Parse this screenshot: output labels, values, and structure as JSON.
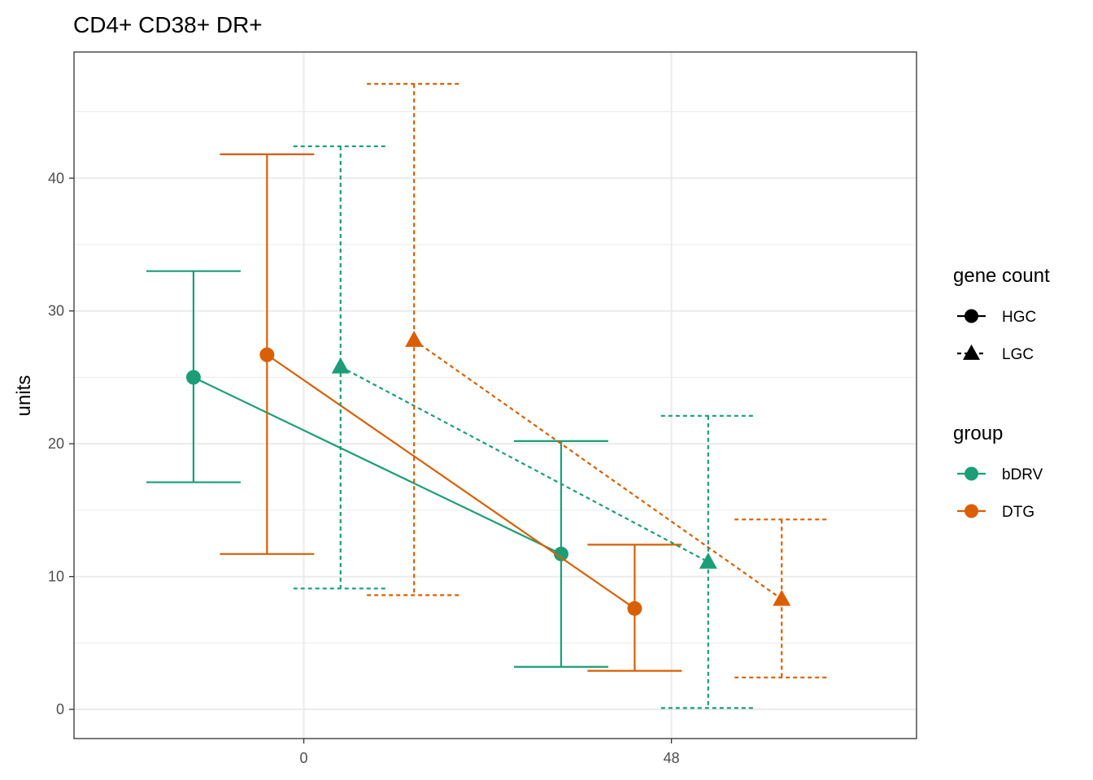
{
  "chart_data": {
    "type": "line",
    "title": "CD4+ CD38+ DR+",
    "xlabel": "",
    "ylabel": "units",
    "x_ticks": [
      "0",
      "48"
    ],
    "y_ticks": [
      "0",
      "10",
      "20",
      "30",
      "40"
    ],
    "ylim": [
      -2.2,
      49.5
    ],
    "xlim": [
      -30,
      80
    ],
    "grid": true,
    "legend_position": "right",
    "legend": {
      "linetype_title": "gene count",
      "linetype_items": [
        {
          "label": "HGC",
          "shape": "circle",
          "dash": "solid"
        },
        {
          "label": "LGC",
          "shape": "triangle",
          "dash": "dotted"
        }
      ],
      "color_title": "group",
      "color_items": [
        {
          "label": "bDRV",
          "color": "#1b9e77"
        },
        {
          "label": "DTG",
          "color": "#d95f02"
        }
      ]
    },
    "series": [
      {
        "group": "bDRV",
        "gene_count": "HGC",
        "color": "#1b9e77",
        "shape": "circle",
        "dash": "solid",
        "points": [
          {
            "x": -14.4,
            "mean": 25.0,
            "lower": 17.1,
            "upper": 33.0
          },
          {
            "x": 33.6,
            "mean": 11.7,
            "lower": 3.2,
            "upper": 20.2
          }
        ]
      },
      {
        "group": "DTG",
        "gene_count": "HGC",
        "color": "#d95f02",
        "shape": "circle",
        "dash": "solid",
        "points": [
          {
            "x": -4.8,
            "mean": 26.7,
            "lower": 11.7,
            "upper": 41.8
          },
          {
            "x": 43.2,
            "mean": 7.6,
            "lower": 2.9,
            "upper": 12.4
          }
        ]
      },
      {
        "group": "bDRV",
        "gene_count": "LGC",
        "color": "#1b9e77",
        "shape": "triangle",
        "dash": "dotted",
        "points": [
          {
            "x": 4.8,
            "mean": 25.8,
            "lower": 9.1,
            "upper": 42.4
          },
          {
            "x": 52.8,
            "mean": 11.1,
            "lower": 0.1,
            "upper": 22.1
          }
        ]
      },
      {
        "group": "DTG",
        "gene_count": "LGC",
        "color": "#d95f02",
        "shape": "triangle",
        "dash": "dotted",
        "points": [
          {
            "x": 14.4,
            "mean": 27.8,
            "lower": 8.6,
            "upper": 47.1
          },
          {
            "x": 62.4,
            "mean": 8.3,
            "lower": 2.4,
            "upper": 14.3
          }
        ]
      }
    ]
  }
}
